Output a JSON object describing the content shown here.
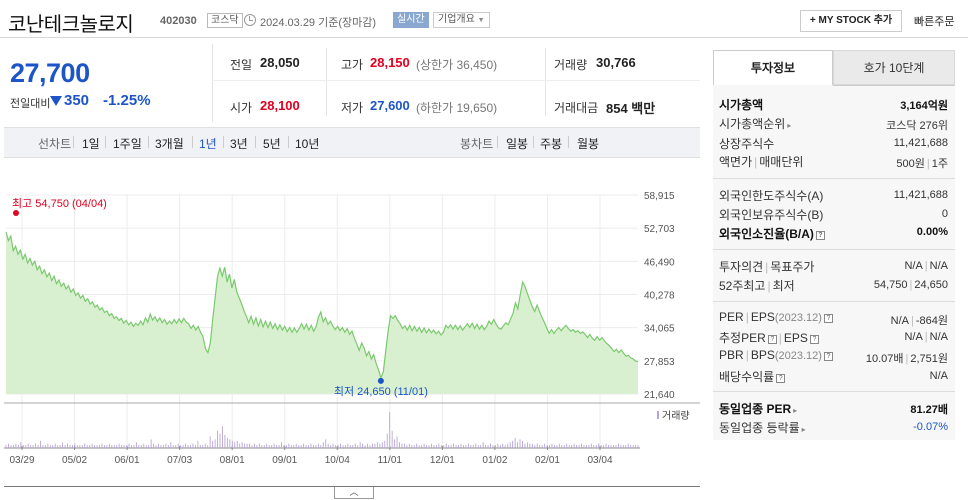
{
  "header": {
    "title": "코난테크놀로지",
    "code": "402030",
    "market": "코스닥",
    "date": "2024.03.29",
    "basis": "기준(장마감)",
    "realtime": "실시간",
    "overview": "기업개요",
    "mystock": "+ MY STOCK 추가",
    "quick_order": "빠른주문"
  },
  "price": {
    "current": "27,700",
    "change_label": "전일대비",
    "change": "350",
    "change_rate": "-1.25%",
    "direction": "down"
  },
  "stats": {
    "prev_label": "전일",
    "prev": "28,050",
    "high_label": "고가",
    "high": "28,150",
    "upper_limit": "(상한가 36,450)",
    "volume_label": "거래량",
    "volume": "30,766",
    "open_label": "시가",
    "open": "28,100",
    "low_label": "저가",
    "low": "27,600",
    "lower_limit": "(하한가 19,650)",
    "amount_label": "거래대금",
    "amount": "854 백만"
  },
  "range_bar": {
    "line_label": "선차트",
    "line_options": [
      "1일",
      "1주일",
      "3개월",
      "1년",
      "3년",
      "5년",
      "10년"
    ],
    "selected": "1년",
    "candle_label": "봉차트",
    "candle_options": [
      "일봉",
      "주봉",
      "월봉"
    ]
  },
  "chart_data": {
    "type": "area",
    "y_ticks": [
      "58,915",
      "52,703",
      "46,490",
      "40,278",
      "34,065",
      "27,853",
      "21,640"
    ],
    "ylim": [
      21640,
      58915
    ],
    "x_ticks": [
      "03/29",
      "05/02",
      "06/01",
      "07/03",
      "08/01",
      "09/01",
      "10/04",
      "11/01",
      "12/01",
      "01/02",
      "02/01",
      "03/04"
    ],
    "high_annotation": "최고 54,750 (04/04)",
    "low_annotation": "최저 24,650 (11/01)",
    "volume_legend": "거래량",
    "line_color": "#7bc96f",
    "fill_color": "#d8f0cf",
    "volume_color": "#b9a6d6",
    "series": [
      52000,
      50400,
      51200,
      48500,
      49300,
      47800,
      48600,
      46900,
      47800,
      46200,
      47000,
      45800,
      46500,
      44900,
      45600,
      44200,
      44900,
      43600,
      44300,
      42900,
      43700,
      42300,
      43000,
      41800,
      42400,
      41300,
      41900,
      40700,
      41300,
      40100,
      40600,
      39600,
      40100,
      39000,
      39500,
      38500,
      38900,
      37900,
      38300,
      37400,
      37800,
      36900,
      37200,
      36300,
      36700,
      35800,
      36100,
      35400,
      35800,
      34900,
      35400,
      34600,
      35100,
      34300,
      34900,
      34500,
      35300,
      34600,
      35900,
      35100,
      36600,
      35500,
      36100,
      35200,
      35900,
      35000,
      35600,
      34700,
      35300,
      34800,
      35600,
      34900,
      35700,
      35000,
      35800,
      35100,
      34800,
      33900,
      34500,
      33600,
      34300,
      33200,
      32400,
      30100,
      29400,
      31200,
      35600,
      39600,
      43600,
      45200,
      43700,
      45400,
      42600,
      44100,
      41500,
      43100,
      40800,
      39700,
      38600,
      37300,
      36200,
      35000,
      36200,
      34700,
      35900,
      34400,
      35600,
      34200,
      35300,
      34100,
      35100,
      33900,
      34800,
      33700,
      34600,
      33600,
      34300,
      33300,
      34100,
      33200,
      34000,
      33200,
      33900,
      34800,
      33800,
      34700,
      33600,
      34500,
      33400,
      34200,
      36000,
      37000,
      35200,
      35900,
      34700,
      35300,
      34400,
      33700,
      34300,
      33500,
      34100,
      33200,
      33900,
      32800,
      33400,
      32100,
      31000,
      29800,
      31200,
      30300,
      28800,
      29600,
      28200,
      29000,
      27400,
      26200,
      24650,
      25800,
      29600,
      33400,
      36300,
      35800,
      36300,
      35400,
      34800,
      33900,
      34400,
      33600,
      34500,
      33500,
      34300,
      33400,
      34100,
      33200,
      34000,
      33100,
      33800,
      33100,
      33600,
      32900,
      33400,
      32700,
      33200,
      34500,
      34000,
      34600,
      33800,
      34500,
      33700,
      34400,
      33600,
      34200,
      34800,
      34100,
      34900,
      33900,
      34700,
      33800,
      34500,
      33700,
      34300,
      35300,
      34700,
      35600,
      34700,
      34000,
      33800,
      34400,
      35000,
      34600,
      35700,
      36700,
      38700,
      37600,
      40300,
      42600,
      41700,
      40400,
      39200,
      38000,
      37100,
      38300,
      37100,
      36000,
      35100,
      34000,
      33000,
      33700,
      33000,
      33600,
      34100,
      33500,
      34000,
      34500,
      33900,
      33400,
      33700,
      33200,
      33500,
      33000,
      33300,
      32800,
      32200,
      32800,
      32100,
      31700,
      32400,
      31700,
      32200,
      31600,
      31100,
      30700,
      30200,
      29600,
      30000,
      29400,
      29900,
      29300,
      28700,
      28900,
      28400,
      28200,
      27800,
      27700
    ],
    "volumes": [
      2,
      3,
      2,
      2,
      3,
      2,
      4,
      2,
      2,
      3,
      2,
      2,
      3,
      2,
      5,
      2,
      2,
      3,
      2,
      2,
      3,
      2,
      2,
      4,
      2,
      3,
      2,
      2,
      3,
      2,
      2,
      2,
      3,
      2,
      2,
      3,
      2,
      2,
      2,
      3,
      2,
      2,
      3,
      2,
      2,
      2,
      3,
      2,
      2,
      2,
      3,
      2,
      2,
      4,
      2,
      2,
      3,
      2,
      2,
      6,
      3,
      2,
      3,
      2,
      2,
      3,
      2,
      4,
      2,
      2,
      3,
      2,
      2,
      3,
      2,
      2,
      3,
      2,
      5,
      2,
      2,
      3,
      2,
      8,
      5,
      6,
      12,
      10,
      15,
      9,
      7,
      6,
      5,
      4,
      5,
      3,
      4,
      3,
      3,
      3,
      2,
      3,
      2,
      3,
      2,
      2,
      3,
      2,
      2,
      3,
      2,
      2,
      4,
      2,
      2,
      3,
      2,
      2,
      3,
      2,
      2,
      3,
      2,
      2,
      3,
      2,
      2,
      3,
      2,
      4,
      6,
      3,
      2,
      3,
      2,
      2,
      3,
      2,
      2,
      3,
      2,
      2,
      3,
      2,
      4,
      3,
      2,
      3,
      2,
      3,
      3,
      4,
      3,
      4,
      5,
      10,
      25,
      12,
      6,
      8,
      4,
      3,
      3,
      2,
      3,
      2,
      2,
      3,
      2,
      2,
      3,
      2,
      2,
      3,
      2,
      2,
      3,
      2,
      2,
      3,
      2,
      2,
      3,
      2,
      2,
      3,
      2,
      2,
      3,
      2,
      2,
      3,
      2,
      2,
      4,
      2,
      2,
      3,
      2,
      2,
      3,
      2,
      3,
      2,
      3,
      4,
      5,
      7,
      4,
      6,
      5,
      3,
      4,
      3,
      3,
      2,
      3,
      2,
      2,
      3,
      2,
      2,
      3,
      2,
      2,
      3,
      2,
      2,
      3,
      2,
      2,
      3,
      2,
      2,
      3,
      2,
      2,
      2,
      3,
      2,
      2,
      3,
      2,
      2,
      3,
      2,
      2,
      2,
      2,
      3,
      2,
      2,
      2,
      3,
      2,
      2,
      2,
      2
    ]
  },
  "sidebar": {
    "tab_info": "투자정보",
    "tab_quote": "호가 10단계",
    "market_cap_label": "시가총액",
    "market_cap": "3,164억원",
    "market_cap_rank_label": "시가총액순위",
    "market_cap_rank": "코스닥 276위",
    "shares_label": "상장주식수",
    "shares": "11,421,688",
    "par_label": "액면가",
    "trade_unit_label": "매매단위",
    "par": "500원",
    "trade_unit": "1주",
    "foreign_limit_label": "외국인한도주식수(A)",
    "foreign_limit": "11,421,688",
    "foreign_hold_label": "외국인보유주식수(B)",
    "foreign_hold": "0",
    "foreign_ratio_label": "외국인소진율(B/A)",
    "foreign_ratio": "0.00%",
    "opinion_label": "투자의견",
    "target_label": "목표주가",
    "opinion": "N/A",
    "target": "N/A",
    "w52_high_label": "52주최고",
    "w52_low_label": "최저",
    "w52_high": "54,750",
    "w52_low": "24,650",
    "per_label": "PER",
    "eps_label": "EPS",
    "eps_period": "(2023.12)",
    "per": "N/A",
    "eps": "-864원",
    "est_per_label": "추정PER",
    "est_eps_label": "EPS",
    "est_per": "N/A",
    "est_eps": "N/A",
    "pbr_label": "PBR",
    "bps_label": "BPS",
    "bps_period": "(2023.12)",
    "pbr": "10.07배",
    "bps": "2,751원",
    "div_label": "배당수익률",
    "div": "N/A",
    "ind_per_label": "동일업종 PER",
    "ind_per": "81.27배",
    "ind_rate_label": "동일업종 등락률",
    "ind_rate": "-0.07%"
  }
}
